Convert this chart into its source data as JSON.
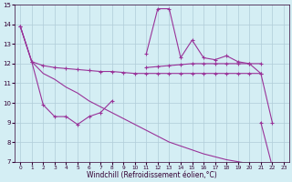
{
  "x": [
    0,
    1,
    2,
    3,
    4,
    5,
    6,
    7,
    8,
    9,
    10,
    11,
    12,
    13,
    14,
    15,
    16,
    17,
    18,
    19,
    20,
    21,
    22,
    23
  ],
  "line_upper_flat": [
    13.9,
    12.1,
    11.9,
    11.8,
    11.75,
    11.7,
    11.65,
    11.6,
    11.6,
    11.55,
    11.5,
    11.5,
    11.5,
    11.5,
    11.5,
    11.5,
    11.5,
    11.5,
    11.5,
    11.5,
    11.5,
    11.5,
    null,
    null
  ],
  "line_upper_flat2": [
    null,
    null,
    null,
    null,
    null,
    null,
    null,
    null,
    null,
    null,
    null,
    11.8,
    11.85,
    11.9,
    11.95,
    12.0,
    12.0,
    12.0,
    12.0,
    12.0,
    12.0,
    12.0,
    null,
    null
  ],
  "line_spiky": [
    13.9,
    12.1,
    9.9,
    9.3,
    9.3,
    8.9,
    9.3,
    9.5,
    10.1,
    null,
    null,
    12.5,
    14.8,
    14.8,
    12.3,
    13.2,
    12.3,
    12.2,
    12.4,
    12.1,
    12.0,
    11.5,
    9.0,
    null
  ],
  "line_drop": [
    null,
    null,
    null,
    null,
    null,
    null,
    null,
    null,
    null,
    null,
    null,
    null,
    null,
    null,
    null,
    null,
    null,
    null,
    null,
    null,
    null,
    9.0,
    6.75,
    6.6
  ],
  "line_diagonal": [
    13.9,
    12.1,
    11.5,
    11.2,
    10.8,
    10.5,
    10.1,
    9.8,
    9.5,
    9.2,
    8.9,
    8.6,
    8.3,
    8.0,
    7.8,
    7.6,
    7.4,
    7.25,
    7.1,
    7.0,
    6.9,
    6.8,
    6.75,
    6.6
  ],
  "bg_color": "#d4eef4",
  "grid_color": "#b0ccd8",
  "line_color": "#993399",
  "xlabel": "Windchill (Refroidissement éolien,°C)",
  "ylim": [
    7,
    15
  ],
  "xlim": [
    -0.5,
    23.5
  ],
  "yticks": [
    7,
    8,
    9,
    10,
    11,
    12,
    13,
    14,
    15
  ],
  "xticks": [
    0,
    1,
    2,
    3,
    4,
    5,
    6,
    7,
    8,
    9,
    10,
    11,
    12,
    13,
    14,
    15,
    16,
    17,
    18,
    19,
    20,
    21,
    22,
    23
  ]
}
